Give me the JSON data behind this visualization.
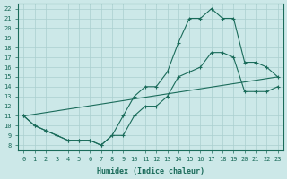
{
  "xlabel": "Humidex (Indice chaleur)",
  "bg_color": "#cce8e8",
  "grid_color": "#aacfcf",
  "line_color": "#1a6b5a",
  "xlim": [
    -0.5,
    23.5
  ],
  "ylim": [
    7.5,
    22.5
  ],
  "xtick_labels": [
    "0",
    "1",
    "2",
    "3",
    "4",
    "5",
    "6",
    "7",
    "8",
    "9",
    "10",
    "11",
    "12",
    "13",
    "14",
    "15",
    "16",
    "17",
    "18",
    "19",
    "20",
    "21",
    "22",
    "23"
  ],
  "xticks": [
    0,
    1,
    2,
    3,
    4,
    5,
    6,
    7,
    8,
    9,
    10,
    11,
    12,
    13,
    14,
    15,
    16,
    17,
    18,
    19,
    20,
    21,
    22,
    23
  ],
  "yticks": [
    8,
    9,
    10,
    11,
    12,
    13,
    14,
    15,
    16,
    17,
    18,
    19,
    20,
    21,
    22
  ],
  "line1_x": [
    0,
    1,
    2,
    3,
    4,
    5,
    6,
    7,
    8,
    9,
    10,
    11,
    12,
    13,
    14,
    15,
    16,
    17,
    18,
    19,
    20,
    21,
    22,
    23
  ],
  "line1_y": [
    11,
    10,
    9.5,
    9,
    8.5,
    8.5,
    8.5,
    8,
    9,
    11,
    13,
    14,
    14,
    15.5,
    18.5,
    21,
    21,
    22,
    21,
    21,
    16.5,
    16.5,
    16,
    15
  ],
  "line2_x": [
    0,
    1,
    2,
    3,
    4,
    5,
    6,
    7,
    8,
    9,
    10,
    11,
    12,
    13,
    14,
    15,
    16,
    17,
    18,
    19,
    20,
    21,
    22,
    23
  ],
  "line2_y": [
    11,
    10,
    9.5,
    9,
    8.5,
    8.5,
    8.5,
    8,
    9,
    9,
    11,
    12,
    12,
    13,
    15,
    15.5,
    16,
    17.5,
    17.5,
    17,
    13.5,
    13.5,
    13.5,
    14
  ],
  "line3_x": [
    0,
    23
  ],
  "line3_y": [
    11,
    15
  ]
}
